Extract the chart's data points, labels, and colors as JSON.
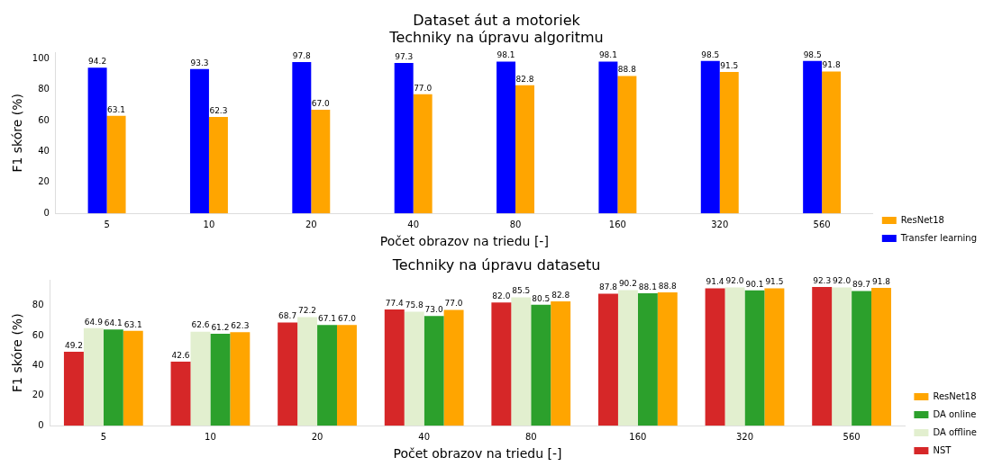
{
  "chart_data": [
    {
      "type": "bar",
      "title": "Dataset áut a motoriek",
      "subtitle": "Techniky na úpravu algoritmu",
      "xlabel": "Počet obrazov na triedu [-]",
      "ylabel": "F1 skóre (%)",
      "categories": [
        "5",
        "10",
        "20",
        "40",
        "80",
        "160",
        "320",
        "560"
      ],
      "series": [
        {
          "name": "Transfer learning",
          "color": "#0000ff",
          "values": [
            94.2,
            93.3,
            97.8,
            97.3,
            98.1,
            98.1,
            98.5,
            98.5
          ],
          "value_labels": [
            "94.2",
            "93.3",
            "97.8",
            "97.3",
            "98.1",
            "98.1",
            "98.5",
            "98.5"
          ]
        },
        {
          "name": "ResNet18",
          "color": "#ffa500",
          "values": [
            63.1,
            62.3,
            67,
            77,
            82.8,
            88.8,
            91.5,
            91.8
          ],
          "value_labels": [
            "63.1",
            "62.3",
            "67.0",
            "77.0",
            "82.8",
            "88.8",
            "91.5",
            "91.8"
          ]
        }
      ],
      "ylim": [
        0,
        104
      ],
      "yticks": [
        0,
        20,
        40,
        60,
        80,
        100
      ],
      "legend": "bottom right"
    },
    {
      "type": "bar",
      "title": "Techniky na úpravu datasetu",
      "xlabel": "Počet obrazov na triedu [-]",
      "ylabel": "F1 skóre (%)",
      "categories": [
        "5",
        "10",
        "20",
        "40",
        "80",
        "160",
        "320",
        "560"
      ],
      "series": [
        {
          "name": "NST",
          "color": "#d62728",
          "values": [
            49.2,
            42.6,
            68.7,
            77.4,
            82,
            87.8,
            91.4,
            92.3
          ],
          "value_labels": [
            "49.2",
            "42.6",
            "68.7",
            "77.4",
            "82.0",
            "87.8",
            "91.4",
            "92.3"
          ]
        },
        {
          "name": "DA offline",
          "color": "#e2efcf",
          "values": [
            64.9,
            62.6,
            72.2,
            75.8,
            85.5,
            90.2,
            92,
            92
          ],
          "value_labels": [
            "64.9",
            "62.6",
            "72.2",
            "75.8",
            "85.5",
            "90.2",
            "92.0",
            "92.0"
          ]
        },
        {
          "name": "DA online",
          "color": "#2ca02c",
          "values": [
            64.1,
            61.2,
            67.1,
            73,
            80.5,
            88.1,
            90.1,
            89.7
          ],
          "value_labels": [
            "64.1",
            "61.2",
            "67.1",
            "73.0",
            "80.5",
            "88.1",
            "90.1",
            "89.7"
          ]
        },
        {
          "name": "ResNet18",
          "color": "#ffa500",
          "values": [
            63.1,
            62.3,
            67,
            77,
            82.8,
            88.8,
            91.5,
            91.8
          ],
          "value_labels": [
            "63.1",
            "62.3",
            "67.0",
            "77.0",
            "82.8",
            "88.8",
            "91.5",
            "91.8"
          ]
        }
      ],
      "ylim": [
        0,
        97
      ],
      "yticks": [
        0,
        20,
        40,
        60,
        80
      ],
      "legend": "bottom right"
    }
  ]
}
